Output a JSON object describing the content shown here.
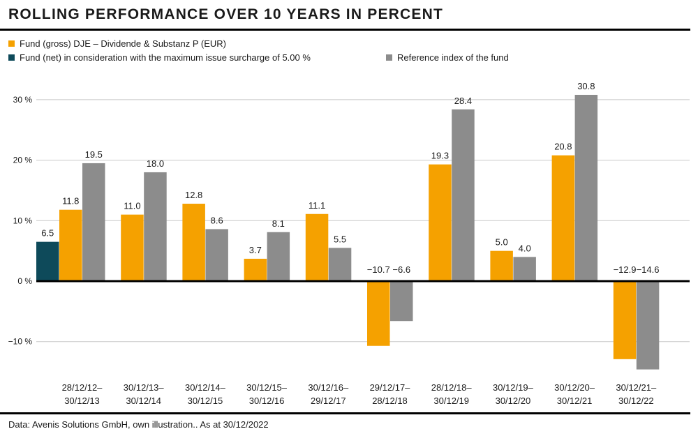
{
  "title": "ROLLING PERFORMANCE OVER 10 YEARS IN PERCENT",
  "source_note": "Data: Avenis Solutions GmbH, own illustration.. As at 30/12/2022",
  "colors": {
    "fund_gross": "#f5a100",
    "fund_net": "#0e4a5a",
    "reference": "#8c8c8c",
    "grid": "#c8c8c8",
    "zero_line": "#000000"
  },
  "chart_data": {
    "type": "bar",
    "title": "ROLLING PERFORMANCE OVER 10 YEARS IN PERCENT",
    "xlabel": "",
    "ylabel": "",
    "ylim": [
      -15,
      35
    ],
    "yticks": [
      {
        "value": -10,
        "label": "−10 %"
      },
      {
        "value": 0,
        "label": "0 %"
      },
      {
        "value": 10,
        "label": "10 %"
      },
      {
        "value": 20,
        "label": "20 %"
      },
      {
        "value": 30,
        "label": "30 %"
      }
    ],
    "grid": true,
    "legend_position": "top-left",
    "categories": [
      [
        "28/12/12–",
        "30/12/13"
      ],
      [
        "30/12/13–",
        "30/12/14"
      ],
      [
        "30/12/14–",
        "30/12/15"
      ],
      [
        "30/12/15–",
        "30/12/16"
      ],
      [
        "30/12/16–",
        "29/12/17"
      ],
      [
        "29/12/17–",
        "28/12/18"
      ],
      [
        "28/12/18–",
        "30/12/19"
      ],
      [
        "30/12/19–",
        "30/12/20"
      ],
      [
        "30/12/20–",
        "30/12/21"
      ],
      [
        "30/12/21–",
        "30/12/22"
      ]
    ],
    "series": [
      {
        "name": "Fund (net) in consideration with the maximum issue surcharge of 5.00 %",
        "key": "fund_net",
        "values": [
          6.5,
          null,
          null,
          null,
          null,
          null,
          null,
          null,
          null,
          null
        ],
        "labels": [
          "6.5",
          null,
          null,
          null,
          null,
          null,
          null,
          null,
          null,
          null
        ]
      },
      {
        "name": "Fund (gross) DJE – Dividende & Substanz P (EUR)",
        "key": "fund_gross",
        "values": [
          11.8,
          11.0,
          12.8,
          3.7,
          11.1,
          -10.7,
          19.3,
          5.0,
          20.8,
          -12.9
        ],
        "labels": [
          "11.8",
          "11.0",
          "12.8",
          "3.7",
          "11.1",
          "−10.7",
          "19.3",
          "5.0",
          "20.8",
          "−12.9"
        ]
      },
      {
        "name": "Reference index of the fund",
        "key": "reference",
        "values": [
          19.5,
          18.0,
          8.6,
          8.1,
          5.5,
          -6.6,
          28.4,
          4.0,
          30.8,
          -14.6
        ],
        "labels": [
          "19.5",
          "18.0",
          "8.6",
          "8.1",
          "5.5",
          "−6.6",
          "28.4",
          "4.0",
          "30.8",
          "−14.6"
        ]
      }
    ]
  }
}
